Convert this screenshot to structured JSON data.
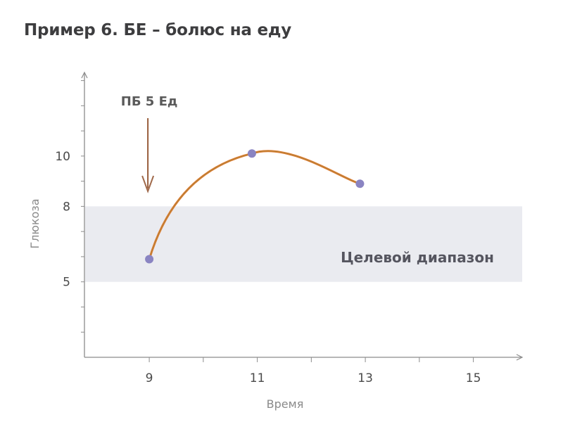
{
  "title": "Пример 6. БЕ – болюс на еду",
  "chart_data": {
    "type": "line",
    "title": "Пример 6. БЕ – болюс на еду",
    "xlabel": "Время",
    "ylabel": "Глюкоза",
    "x_ticks": [
      9,
      11,
      13,
      15
    ],
    "y_ticks": [
      5,
      8,
      10
    ],
    "xlim": [
      7.8,
      15.8
    ],
    "ylim": [
      2,
      13.1
    ],
    "grid": false,
    "series": [
      {
        "x": [
          9,
          10.9,
          12.9
        ],
        "y": [
          5.9,
          10.1,
          8.9
        ]
      }
    ],
    "target_band": {
      "label": "Целевой диапазон",
      "y_from": 5,
      "y_to": 8
    },
    "annotation": {
      "label": "ПБ 5 Ед",
      "x": 9
    },
    "colors": {
      "line": "#e0792e",
      "line_inner": "#8b8b40",
      "points": "#8a84c2",
      "band": "#eaebf0",
      "axis": "#8c8c8c",
      "arrow": "#a0694a"
    }
  }
}
